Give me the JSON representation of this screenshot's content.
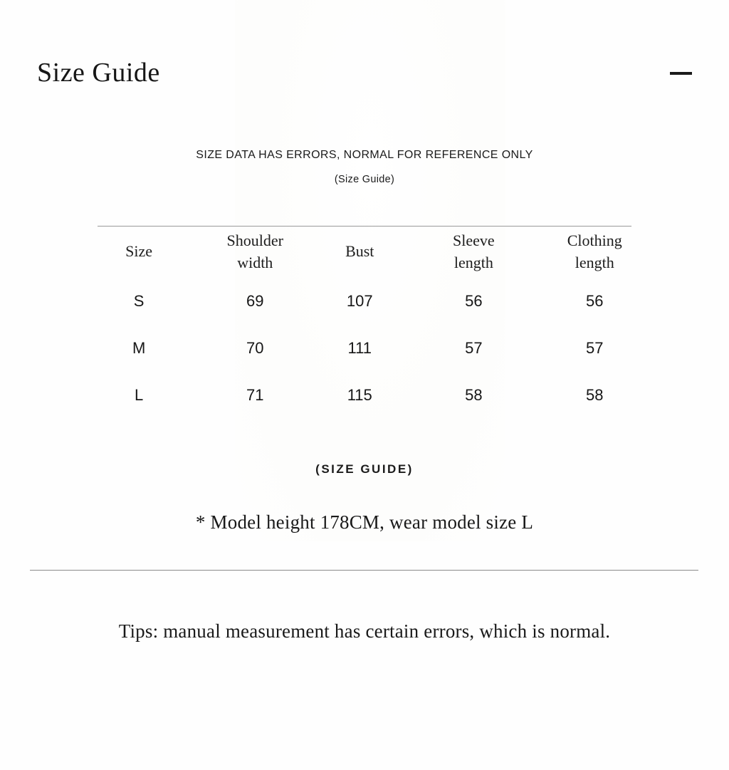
{
  "header": {
    "title": "Size Guide",
    "collapse_icon": "minus-icon"
  },
  "notice": {
    "line1": "SIZE DATA HAS ERRORS, NORMAL FOR REFERENCE ONLY",
    "line2": "(Size Guide)"
  },
  "size_table": {
    "columns": [
      "Size",
      "Shoulder width",
      "Bust",
      "Sleeve length",
      "Clothing length"
    ],
    "rows": [
      [
        "S",
        "69",
        "107",
        "56",
        "56"
      ],
      [
        "M",
        "70",
        "111",
        "57",
        "57"
      ],
      [
        "L",
        "71",
        "115",
        "58",
        "58"
      ]
    ]
  },
  "caption": "(SIZE GUIDE)",
  "model_note": "* Model height 178CM, wear model size L",
  "tips": "Tips: manual measurement has certain errors, which is normal.",
  "colors": {
    "text": "#1c1c1c",
    "table_rule": "#9a9a9a",
    "divider": "#8a8a8a",
    "background": "#fefefe"
  }
}
